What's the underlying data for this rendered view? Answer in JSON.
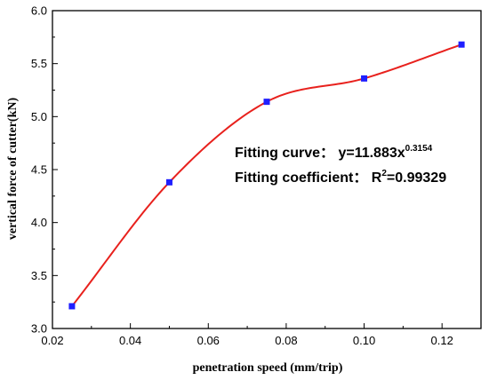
{
  "chart_data": {
    "type": "scatter",
    "xlabel": "penetration speed (mm/trip)",
    "ylabel": "vertical force of cutter(kN)",
    "xlim": [
      0.02,
      0.13
    ],
    "ylim": [
      3.0,
      6.0
    ],
    "x_ticks": [
      "0.02",
      "0.04",
      "0.06",
      "0.08",
      "0.10",
      "0.12"
    ],
    "y_ticks": [
      "3.0",
      "3.5",
      "4.0",
      "4.5",
      "5.0",
      "5.5",
      "6.0"
    ],
    "grid": false,
    "series": [
      {
        "kind": "points",
        "marker": "square",
        "color": "#1f1fff",
        "x": [
          0.025,
          0.05,
          0.075,
          0.1,
          0.125
        ],
        "y": [
          3.21,
          4.38,
          5.14,
          5.36,
          5.68
        ]
      },
      {
        "kind": "fit-curve",
        "color": "#e8211d",
        "x_range": [
          0.025,
          0.125
        ]
      }
    ],
    "annotations": [
      {
        "prefix": "Fitting curve：  y=11.883x",
        "sup": "0.3154",
        "suffix": ""
      },
      {
        "prefix": "Fitting coefficient：  R",
        "sup": "2",
        "suffix": "=0.99329"
      }
    ]
  }
}
